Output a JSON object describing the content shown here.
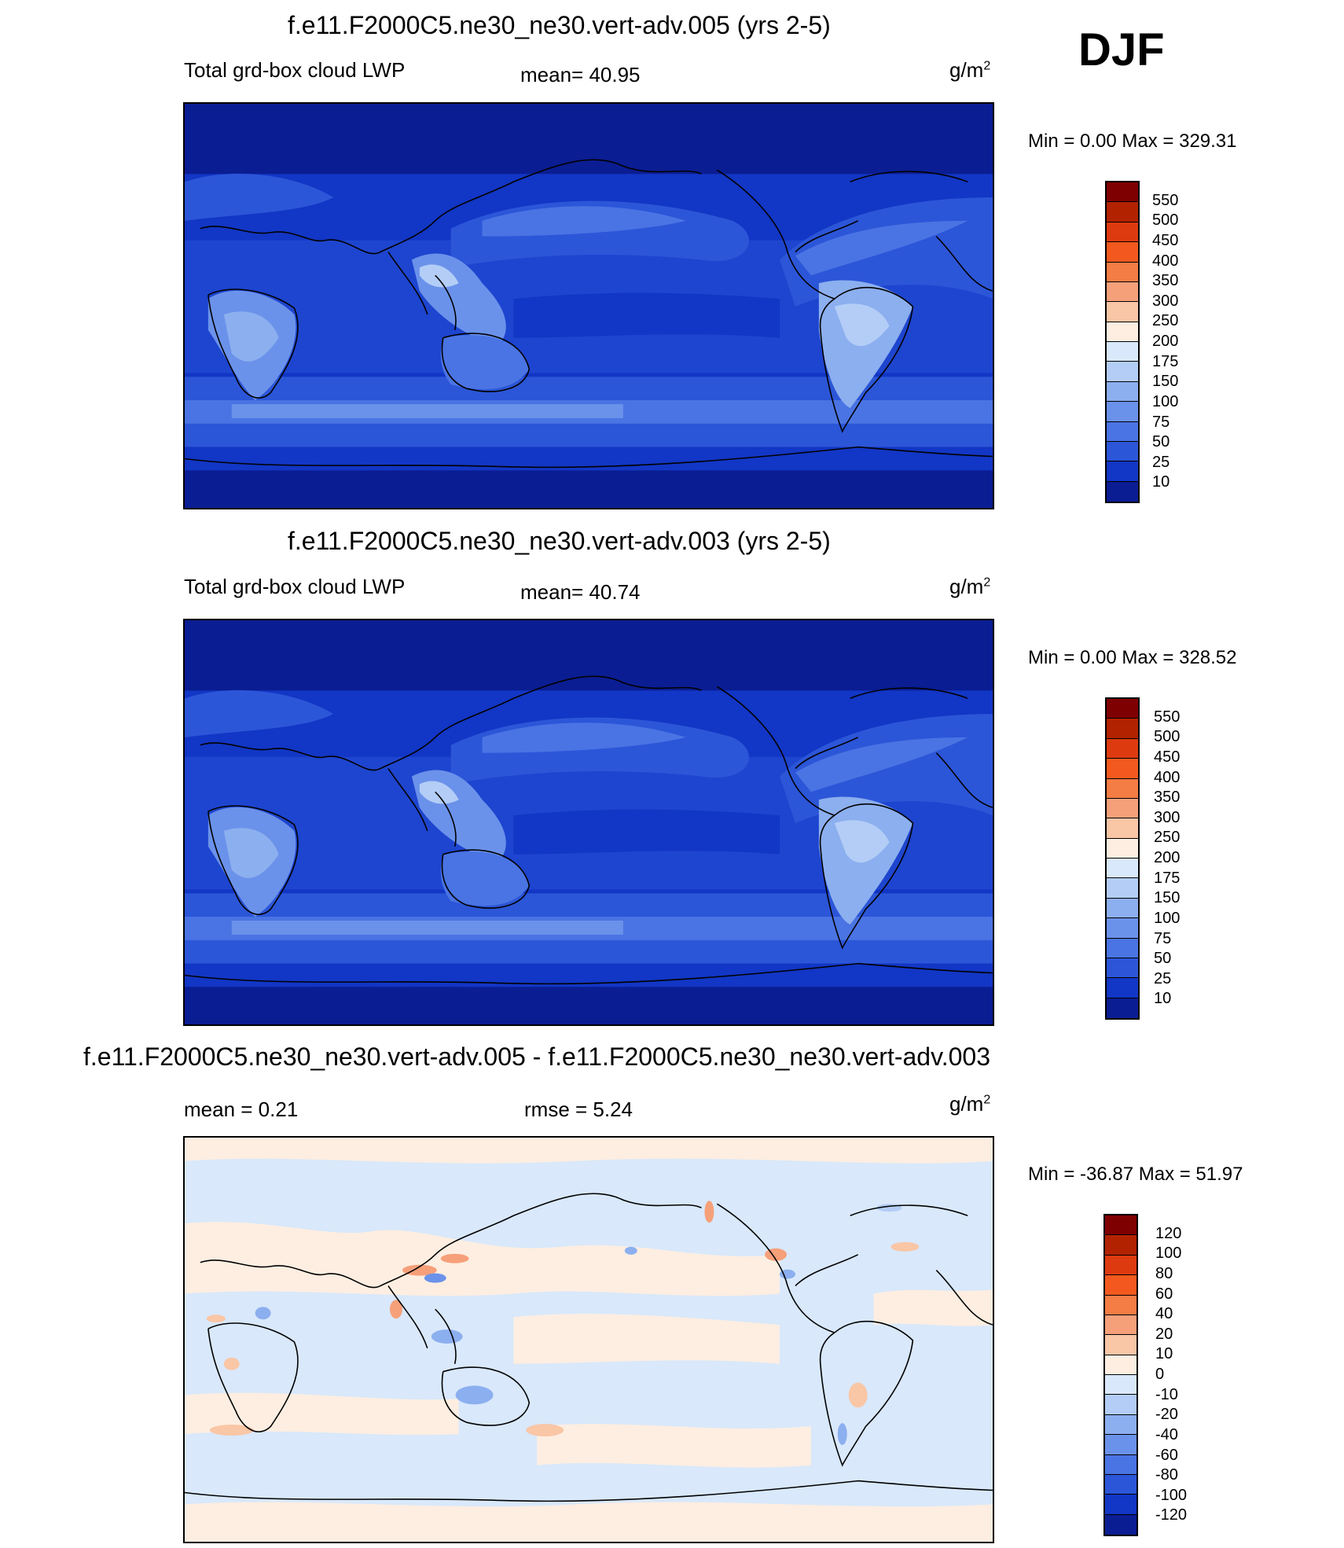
{
  "season": "DJF",
  "panels": [
    {
      "title": "f.e11.F2000C5.ne30_ne30.vert-adv.005 (yrs 2-5)",
      "left_label": "Total grd-box cloud LWP",
      "center_label": "mean=  40.95",
      "units": "g/m",
      "units_exp": "2",
      "minmax": "Min =    0.00 Max = 329.31",
      "colorbar": {
        "levels": [
          "550",
          "500",
          "450",
          "400",
          "350",
          "300",
          "250",
          "200",
          "175",
          "150",
          "100",
          "75",
          "50",
          "25",
          "10"
        ],
        "colors": [
          "#7f0000",
          "#b22200",
          "#dd3a10",
          "#f3591e",
          "#f47c45",
          "#f6a07a",
          "#f9c6a6",
          "#fdeee1",
          "#d9e8fb",
          "#b3cdf6",
          "#8cafef",
          "#6b92ea",
          "#4a74e3",
          "#2c56d8",
          "#1236c5",
          "#0a1d92"
        ]
      }
    },
    {
      "title": "f.e11.F2000C5.ne30_ne30.vert-adv.003 (yrs 2-5)",
      "left_label": "Total grd-box cloud LWP",
      "center_label": "mean=  40.74",
      "units": "g/m",
      "units_exp": "2",
      "minmax": "Min =    0.00 Max = 328.52",
      "colorbar": {
        "levels": [
          "550",
          "500",
          "450",
          "400",
          "350",
          "300",
          "250",
          "200",
          "175",
          "150",
          "100",
          "75",
          "50",
          "25",
          "10"
        ],
        "colors": [
          "#7f0000",
          "#b22200",
          "#dd3a10",
          "#f3591e",
          "#f47c45",
          "#f6a07a",
          "#f9c6a6",
          "#fdeee1",
          "#d9e8fb",
          "#b3cdf6",
          "#8cafef",
          "#6b92ea",
          "#4a74e3",
          "#2c56d8",
          "#1236c5",
          "#0a1d92"
        ]
      }
    },
    {
      "title": "f.e11.F2000C5.ne30_ne30.vert-adv.005 - f.e11.F2000C5.ne30_ne30.vert-adv.003",
      "left_label": "mean =   0.21",
      "center_label": "rmse =   5.24",
      "units": "g/m",
      "units_exp": "2",
      "minmax": "Min = -36.87 Max =  51.97",
      "colorbar": {
        "levels": [
          "120",
          "100",
          "80",
          "60",
          "40",
          "20",
          "10",
          "0",
          "-10",
          "-20",
          "-40",
          "-60",
          "-80",
          "-100",
          "-120"
        ],
        "colors": [
          "#7f0000",
          "#b22200",
          "#dd3a10",
          "#f3591e",
          "#f47c45",
          "#f6a07a",
          "#f9c6a6",
          "#fdeee1",
          "#d9e8fb",
          "#b3cdf6",
          "#8cafef",
          "#6b92ea",
          "#4a74e3",
          "#2c56d8",
          "#1236c5",
          "#0a1d92"
        ]
      }
    }
  ]
}
